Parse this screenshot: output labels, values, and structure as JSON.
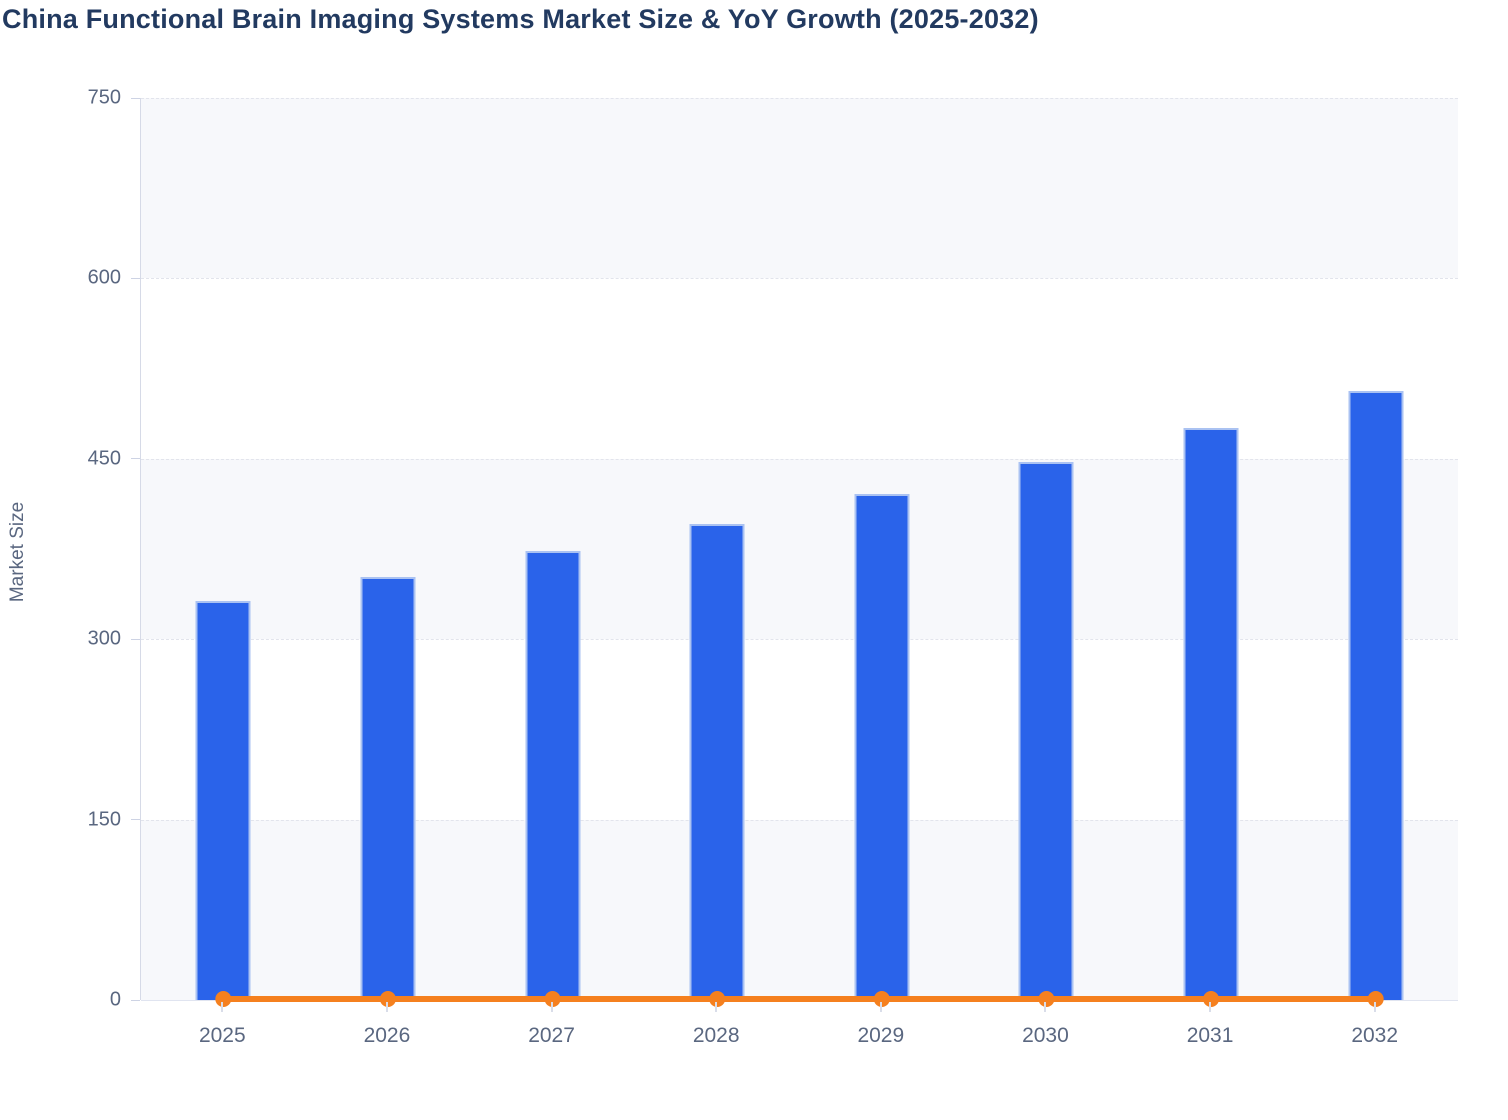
{
  "title": "China Functional Brain Imaging Systems Market Size & YoY Growth (2025-2032)",
  "chart_data": {
    "type": "bar",
    "title": "China Functional Brain Imaging Systems Market Size & YoY Growth (2025-2032)",
    "categories": [
      "2025",
      "2026",
      "2027",
      "2028",
      "2029",
      "2030",
      "2031",
      "2032"
    ],
    "series": [
      {
        "name": "Market Size",
        "type": "bar",
        "values": [
          332,
          352,
          373,
          396,
          421,
          447,
          476,
          506
        ],
        "color": "#2a63ea"
      },
      {
        "name": "YoY Growth",
        "type": "line",
        "values": [
          0.06,
          0.06,
          0.06,
          0.06,
          0.06,
          0.06,
          0.06,
          0.06
        ],
        "color": "#f5801f",
        "note_rendered_position": "flat line with round markers at y ≈ 0 on the shared Market Size axis"
      }
    ],
    "xlabel": "",
    "ylabel": "Market Size",
    "ylim": [
      0,
      750
    ],
    "yticks": [
      0,
      150,
      300,
      450,
      600,
      750
    ],
    "grid": "horizontal dashed lines at each y tick",
    "split_area": "alternating light-grey / white horizontal bands between ticks",
    "legend_position": "none"
  },
  "colors": {
    "title_text": "#223a60",
    "axis_label_text": "#5a6780",
    "bar_fill": "#2a63ea",
    "bar_border": "#aac2f2",
    "line_orange": "#f5801f",
    "band_grey": "#f7f8fb",
    "gridline": "#e2e4ec",
    "axis_line": "#d6dae7"
  }
}
